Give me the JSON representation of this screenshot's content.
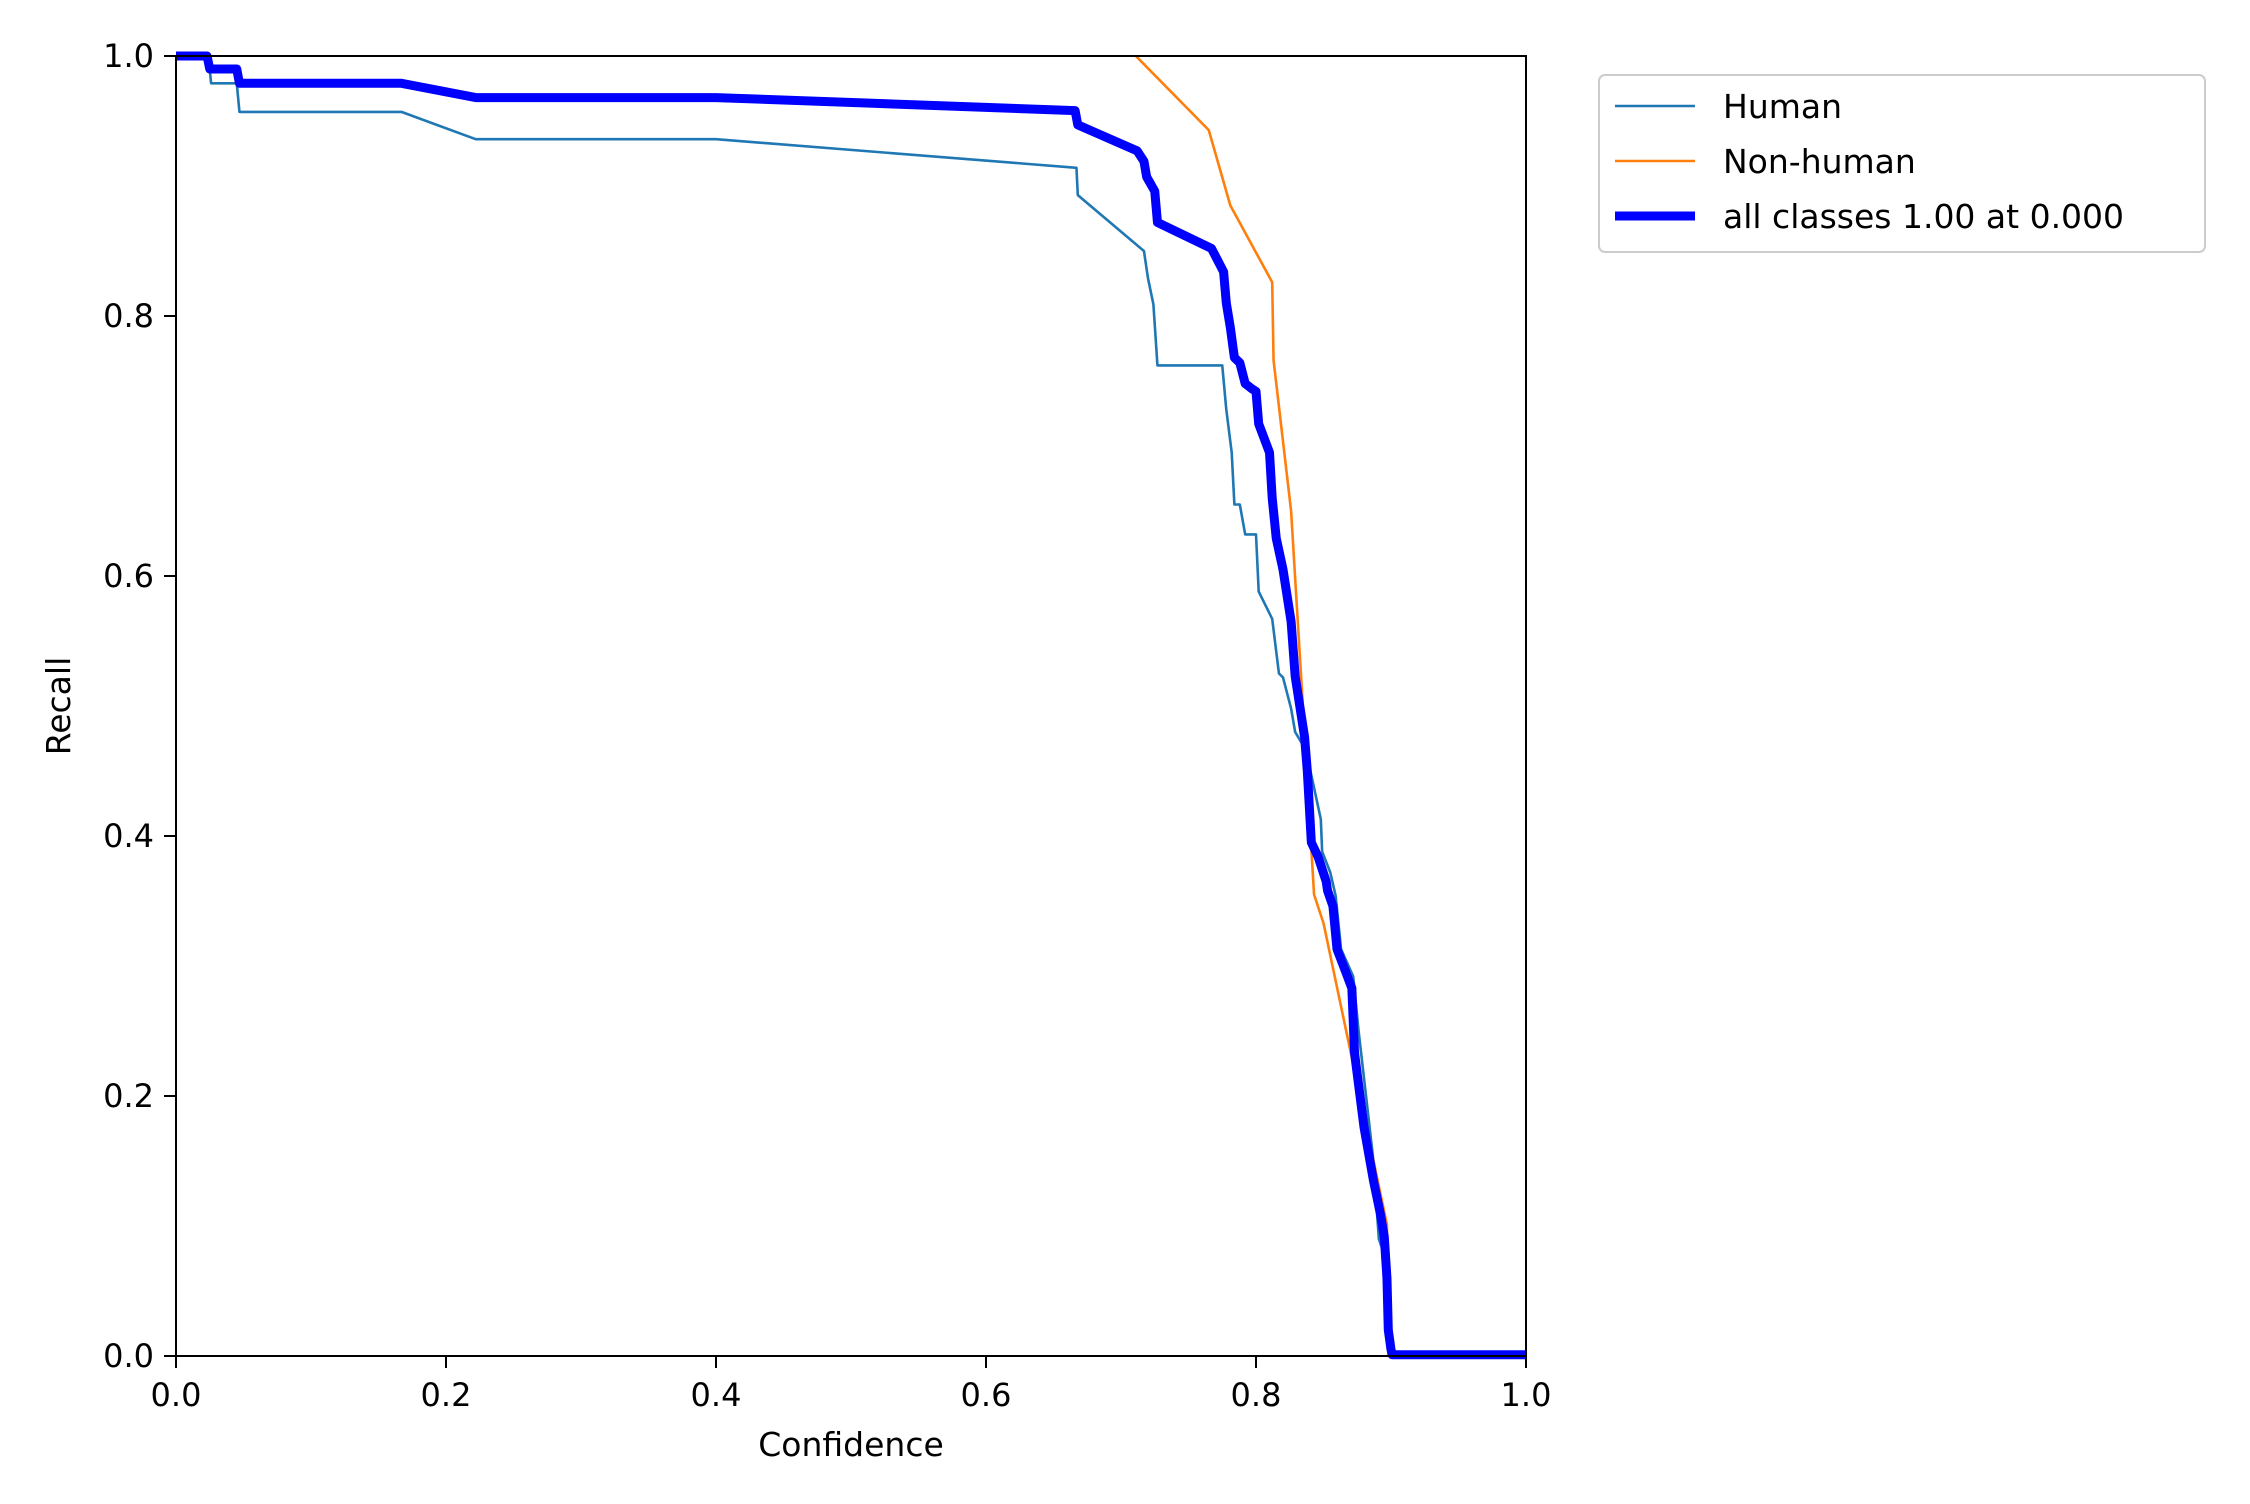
{
  "chart_data": {
    "type": "line",
    "title": "",
    "xlabel": "Confidence",
    "ylabel": "Recall",
    "xlim": [
      0.0,
      1.0
    ],
    "ylim": [
      0.0,
      1.0
    ],
    "x_ticks": [
      "0.0",
      "0.2",
      "0.4",
      "0.6",
      "0.8",
      "1.0"
    ],
    "y_ticks": [
      "0.0",
      "0.2",
      "0.4",
      "0.6",
      "0.8",
      "1.0"
    ],
    "grid": false,
    "legend_position": "outside-top-right",
    "series": [
      {
        "name": "Human",
        "color": "#1f77b4",
        "line_width": "thin",
        "points": [
          [
            0.0,
            1.0
          ],
          [
            0.024,
            1.0
          ],
          [
            0.026,
            0.979
          ],
          [
            0.045,
            0.979
          ],
          [
            0.047,
            0.957
          ],
          [
            0.167,
            0.957
          ],
          [
            0.222,
            0.936
          ],
          [
            0.4,
            0.936
          ],
          [
            0.667,
            0.914
          ],
          [
            0.668,
            0.893
          ],
          [
            0.717,
            0.85
          ],
          [
            0.72,
            0.829
          ],
          [
            0.724,
            0.809
          ],
          [
            0.727,
            0.762
          ],
          [
            0.775,
            0.762
          ],
          [
            0.778,
            0.728
          ],
          [
            0.782,
            0.695
          ],
          [
            0.784,
            0.655
          ],
          [
            0.788,
            0.655
          ],
          [
            0.792,
            0.632
          ],
          [
            0.8,
            0.632
          ],
          [
            0.802,
            0.588
          ],
          [
            0.812,
            0.567
          ],
          [
            0.817,
            0.525
          ],
          [
            0.82,
            0.522
          ],
          [
            0.826,
            0.498
          ],
          [
            0.829,
            0.48
          ],
          [
            0.837,
            0.466
          ],
          [
            0.848,
            0.413
          ],
          [
            0.849,
            0.388
          ],
          [
            0.855,
            0.372
          ],
          [
            0.859,
            0.354
          ],
          [
            0.863,
            0.313
          ],
          [
            0.872,
            0.292
          ],
          [
            0.876,
            0.25
          ],
          [
            0.887,
            0.15
          ],
          [
            0.891,
            0.09
          ],
          [
            0.896,
            0.075
          ],
          [
            0.899,
            0.062
          ],
          [
            0.9,
            0.0
          ],
          [
            1.0,
            0.0
          ]
        ]
      },
      {
        "name": "Non-human",
        "color": "#ff7f0e",
        "line_width": "thin",
        "points": [
          [
            0.711,
            1.0
          ],
          [
            0.765,
            0.943
          ],
          [
            0.781,
            0.885
          ],
          [
            0.812,
            0.826
          ],
          [
            0.813,
            0.766
          ],
          [
            0.826,
            0.65
          ],
          [
            0.836,
            0.478
          ],
          [
            0.843,
            0.355
          ],
          [
            0.85,
            0.333
          ],
          [
            0.897,
            0.101
          ],
          [
            0.898,
            0.0
          ],
          [
            1.0,
            0.0
          ]
        ]
      },
      {
        "name": "all classes 1.00 at 0.000",
        "color": "#0000ff",
        "line_width": "thick",
        "points": [
          [
            0.0,
            1.0
          ],
          [
            0.023,
            1.0
          ],
          [
            0.025,
            0.99
          ],
          [
            0.045,
            0.99
          ],
          [
            0.047,
            0.979
          ],
          [
            0.167,
            0.979
          ],
          [
            0.222,
            0.968
          ],
          [
            0.4,
            0.968
          ],
          [
            0.666,
            0.958
          ],
          [
            0.668,
            0.947
          ],
          [
            0.712,
            0.927
          ],
          [
            0.717,
            0.919
          ],
          [
            0.719,
            0.907
          ],
          [
            0.725,
            0.896
          ],
          [
            0.727,
            0.872
          ],
          [
            0.767,
            0.852
          ],
          [
            0.776,
            0.834
          ],
          [
            0.778,
            0.81
          ],
          [
            0.781,
            0.791
          ],
          [
            0.784,
            0.768
          ],
          [
            0.788,
            0.764
          ],
          [
            0.792,
            0.748
          ],
          [
            0.797,
            0.744
          ],
          [
            0.8,
            0.742
          ],
          [
            0.802,
            0.717
          ],
          [
            0.81,
            0.695
          ],
          [
            0.812,
            0.66
          ],
          [
            0.815,
            0.629
          ],
          [
            0.82,
            0.605
          ],
          [
            0.826,
            0.565
          ],
          [
            0.829,
            0.523
          ],
          [
            0.836,
            0.476
          ],
          [
            0.838,
            0.45
          ],
          [
            0.841,
            0.395
          ],
          [
            0.846,
            0.384
          ],
          [
            0.852,
            0.365
          ],
          [
            0.853,
            0.358
          ],
          [
            0.857,
            0.346
          ],
          [
            0.86,
            0.313
          ],
          [
            0.867,
            0.294
          ],
          [
            0.871,
            0.283
          ],
          [
            0.873,
            0.233
          ],
          [
            0.88,
            0.176
          ],
          [
            0.887,
            0.135
          ],
          [
            0.892,
            0.11
          ],
          [
            0.895,
            0.092
          ],
          [
            0.897,
            0.06
          ],
          [
            0.898,
            0.02
          ],
          [
            0.9,
            0.005
          ],
          [
            0.901,
            0.001
          ],
          [
            1.0,
            0.001
          ]
        ]
      }
    ]
  }
}
